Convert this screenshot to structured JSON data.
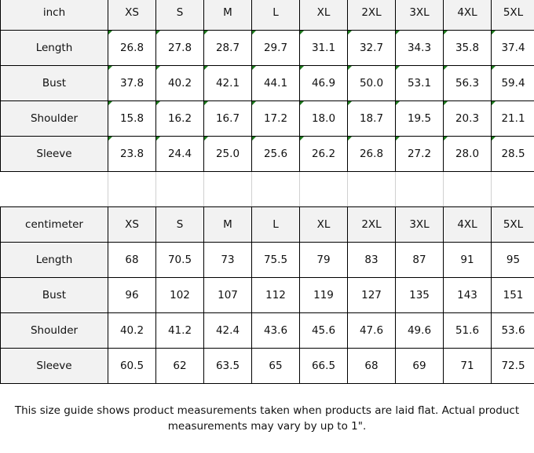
{
  "sizes": [
    "XS",
    "S",
    "M",
    "L",
    "XL",
    "2XL",
    "3XL",
    "4XL",
    "5XL"
  ],
  "inch_table": {
    "unit_label": "inch",
    "rows": [
      {
        "label": "Length",
        "values": [
          "26.8",
          "27.8",
          "28.7",
          "29.7",
          "31.1",
          "32.7",
          "34.3",
          "35.8",
          "37.4"
        ]
      },
      {
        "label": "Bust",
        "values": [
          "37.8",
          "40.2",
          "42.1",
          "44.1",
          "46.9",
          "50.0",
          "53.1",
          "56.3",
          "59.4"
        ]
      },
      {
        "label": "Shoulder",
        "values": [
          "15.8",
          "16.2",
          "16.7",
          "17.2",
          "18.0",
          "18.7",
          "19.5",
          "20.3",
          "21.1"
        ]
      },
      {
        "label": "Sleeve",
        "values": [
          "23.8",
          "24.4",
          "25.0",
          "25.6",
          "26.2",
          "26.8",
          "27.2",
          "28.0",
          "28.5"
        ]
      }
    ]
  },
  "cm_table": {
    "unit_label": "centimeter",
    "rows": [
      {
        "label": "Length",
        "values": [
          "68",
          "70.5",
          "73",
          "75.5",
          "79",
          "83",
          "87",
          "91",
          "95"
        ]
      },
      {
        "label": "Bust",
        "values": [
          "96",
          "102",
          "107",
          "112",
          "119",
          "127",
          "135",
          "143",
          "151"
        ]
      },
      {
        "label": "Shoulder",
        "values": [
          "40.2",
          "41.2",
          "42.4",
          "43.6",
          "45.6",
          "47.6",
          "49.6",
          "51.6",
          "53.6"
        ]
      },
      {
        "label": "Sleeve",
        "values": [
          "60.5",
          "62",
          "63.5",
          "65",
          "66.5",
          "68",
          "69",
          "71",
          "72.5"
        ]
      }
    ]
  },
  "footer": {
    "note": "This size guide shows product measurements taken when products are laid flat. Actual product measurements may vary by up to 1\"."
  },
  "colors": {
    "header_bg": "#f2f2f2",
    "indicator": "#1e7b1e",
    "border": "#000000"
  }
}
